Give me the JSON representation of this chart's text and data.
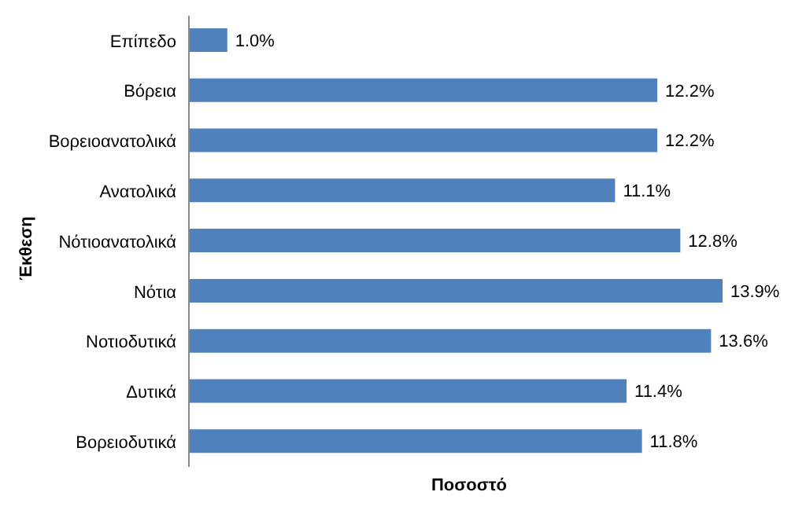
{
  "chart_data": {
    "type": "bar",
    "orientation": "horizontal",
    "xlabel": "Ποσοστό",
    "ylabel": "Έκθεση",
    "categories": [
      "Επίπεδο",
      "Βόρεια",
      "Βορειοανατολικά",
      "Ανατολικά",
      "Νότιοανατολικά",
      "Νότια",
      "Νοτιοδυτικά",
      "Δυτικά",
      "Βορειοδυτικά"
    ],
    "values": [
      1.0,
      12.2,
      12.2,
      11.1,
      12.8,
      13.9,
      13.6,
      11.4,
      11.8
    ],
    "value_labels": [
      "1.0%",
      "12.2%",
      "12.2%",
      "11.1%",
      "12.8%",
      "13.9%",
      "13.6%",
      "11.4%",
      "11.8%"
    ],
    "color": "#4f81bd"
  }
}
